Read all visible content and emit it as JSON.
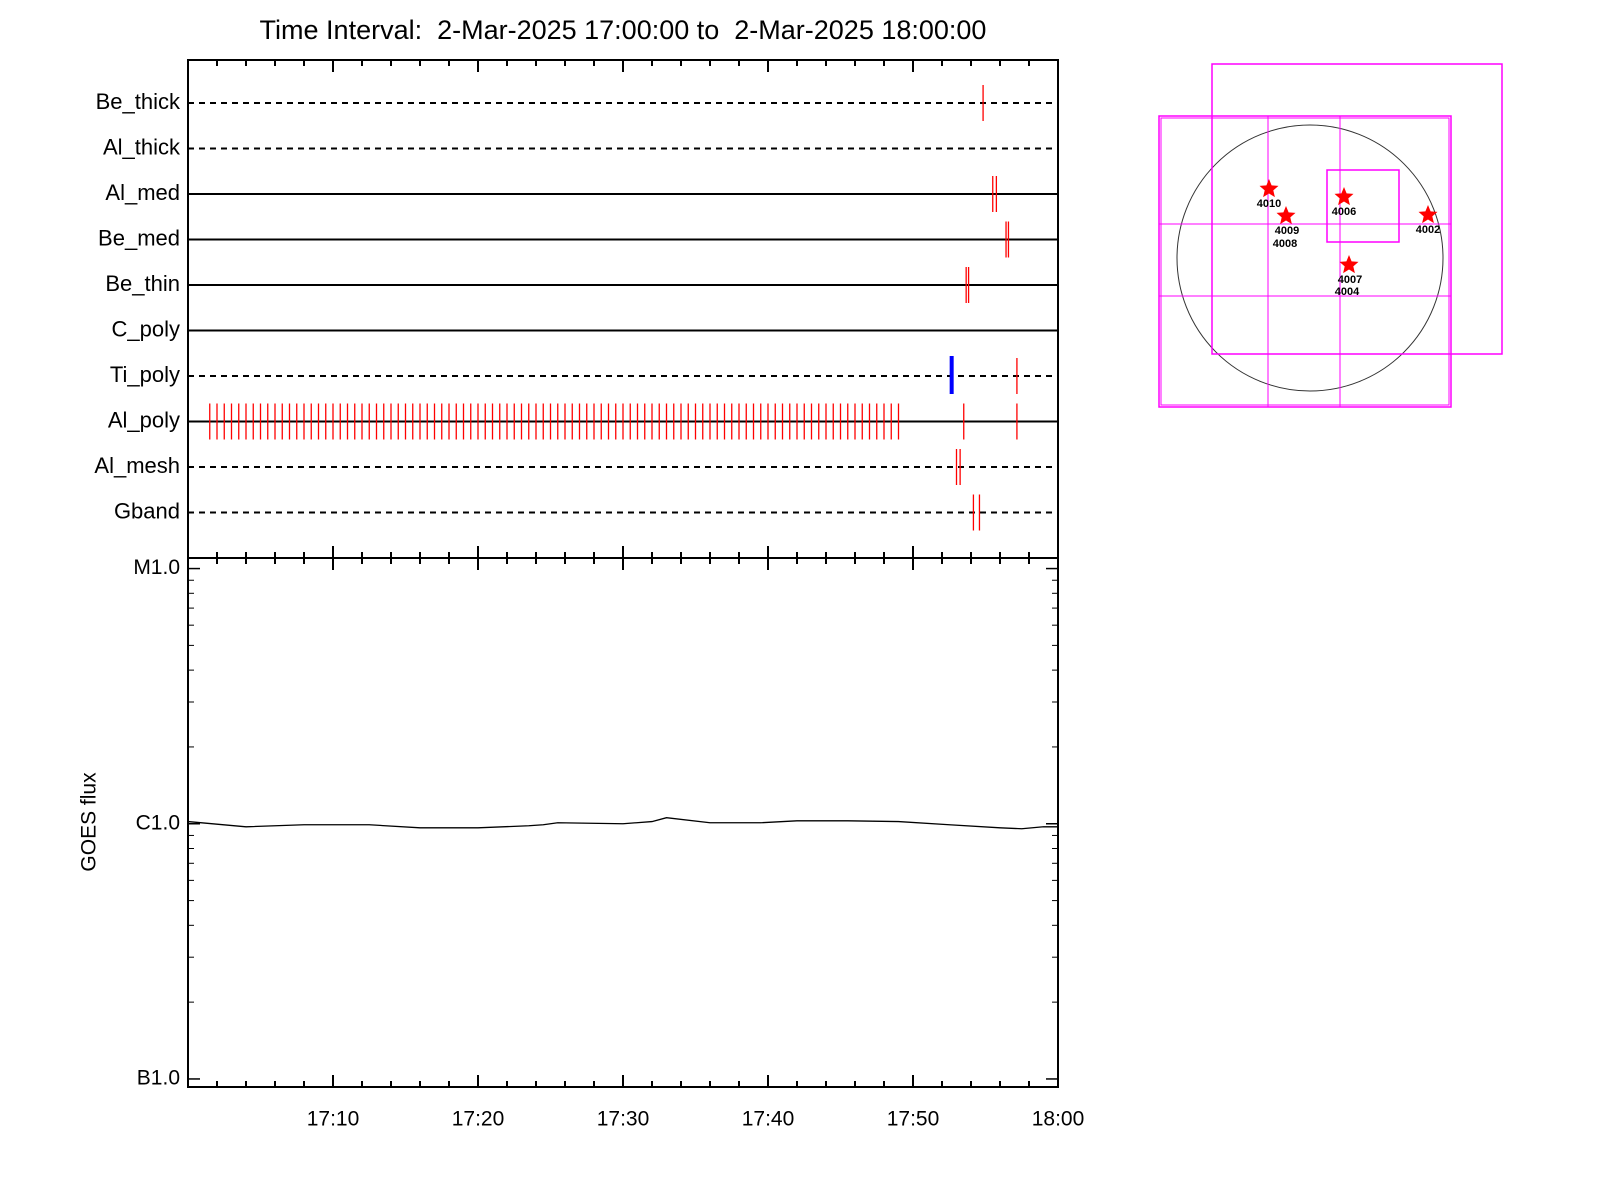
{
  "chart_data": [
    {
      "type": "timeline",
      "title": "Time Interval:  2-Mar-2025 17:00:00 to  2-Mar-2025 18:00:00",
      "xlim": [
        "17:00",
        "18:00"
      ],
      "xticks": [
        "17:10",
        "17:20",
        "17:30",
        "17:40",
        "17:50"
      ],
      "xminor": [
        "17:02",
        "17:04",
        "17:06",
        "17:08",
        "17:12",
        "17:14",
        "17:16",
        "17:18",
        "17:22",
        "17:24",
        "17:26",
        "17:28",
        "17:32",
        "17:34",
        "17:36",
        "17:38",
        "17:42",
        "17:44",
        "17:46",
        "17:48",
        "17:52",
        "17:54",
        "17:56",
        "17:58"
      ],
      "exposure_color": "#ff0000",
      "highlight_color": "#0000ff",
      "rows": [
        {
          "name": "Be_thick",
          "style": "dashed",
          "exposures": [
            "17:54:50"
          ]
        },
        {
          "name": "Al_thick",
          "style": "dashed",
          "exposures": []
        },
        {
          "name": "Al_med",
          "style": "solid",
          "exposures": [
            "17:55:30",
            "17:55:45"
          ]
        },
        {
          "name": "Be_med",
          "style": "solid",
          "exposures": [
            "17:56:25",
            "17:56:35"
          ]
        },
        {
          "name": "Be_thin",
          "style": "solid",
          "exposures": [
            "17:53:40",
            "17:53:50"
          ]
        },
        {
          "name": "C_poly",
          "style": "solid",
          "exposures": []
        },
        {
          "name": "Ti_poly",
          "style": "dashed",
          "exposures": [
            "17:57:10"
          ],
          "highlights": [
            "17:52:40"
          ]
        },
        {
          "name": "Al_poly",
          "style": "solid",
          "exposures": [
            "17:01:30",
            "17:02:00",
            "17:02:30",
            "17:03:00",
            "17:03:30",
            "17:04:00",
            "17:04:30",
            "17:05:00",
            "17:05:30",
            "17:06:00",
            "17:06:30",
            "17:07:00",
            "17:07:30",
            "17:08:00",
            "17:08:30",
            "17:09:00",
            "17:09:30",
            "17:10:00",
            "17:10:30",
            "17:11:00",
            "17:11:30",
            "17:12:00",
            "17:12:30",
            "17:13:00",
            "17:13:30",
            "17:14:00",
            "17:14:30",
            "17:15:00",
            "17:15:30",
            "17:16:00",
            "17:16:30",
            "17:17:00",
            "17:17:30",
            "17:18:00",
            "17:18:30",
            "17:19:00",
            "17:19:30",
            "17:20:00",
            "17:20:30",
            "17:21:00",
            "17:21:30",
            "17:22:00",
            "17:22:30",
            "17:23:00",
            "17:23:30",
            "17:24:00",
            "17:24:30",
            "17:25:00",
            "17:25:30",
            "17:26:00",
            "17:26:30",
            "17:27:00",
            "17:27:30",
            "17:28:00",
            "17:28:30",
            "17:29:00",
            "17:29:30",
            "17:30:00",
            "17:30:30",
            "17:31:00",
            "17:31:30",
            "17:32:00",
            "17:32:30",
            "17:33:00",
            "17:33:30",
            "17:34:00",
            "17:34:30",
            "17:35:00",
            "17:35:30",
            "17:36:00",
            "17:36:30",
            "17:37:00",
            "17:37:30",
            "17:38:00",
            "17:38:30",
            "17:39:00",
            "17:39:30",
            "17:40:00",
            "17:40:30",
            "17:41:00",
            "17:41:30",
            "17:42:00",
            "17:42:30",
            "17:43:00",
            "17:43:30",
            "17:44:00",
            "17:44:30",
            "17:45:00",
            "17:45:30",
            "17:46:00",
            "17:46:30",
            "17:47:00",
            "17:47:30",
            "17:48:00",
            "17:48:30",
            "17:49:00",
            "17:53:30",
            "17:57:10"
          ]
        },
        {
          "name": "Al_mesh",
          "style": "dashed",
          "exposures": [
            "17:53:00",
            "17:53:15"
          ]
        },
        {
          "name": "Gband",
          "style": "dashed",
          "exposures": [
            "17:54:10",
            "17:54:35"
          ]
        }
      ]
    },
    {
      "type": "line",
      "y_label": "GOES flux",
      "log": true,
      "color": "#000000",
      "xlim": [
        "17:00",
        "18:00"
      ],
      "xticks": [
        "17:10",
        "17:20",
        "17:30",
        "17:40",
        "17:50",
        "18:00"
      ],
      "xminor": [
        "17:02",
        "17:04",
        "17:06",
        "17:08",
        "17:12",
        "17:14",
        "17:16",
        "17:18",
        "17:22",
        "17:24",
        "17:26",
        "17:28",
        "17:32",
        "17:34",
        "17:36",
        "17:38",
        "17:42",
        "17:44",
        "17:46",
        "17:48",
        "17:52",
        "17:54",
        "17:56",
        "17:58"
      ],
      "ylim": [
        9.3e-08,
        1.1e-05
      ],
      "yticks": [
        {
          "value": 1e-07,
          "label": "B1.0"
        },
        {
          "value": 1e-06,
          "label": "C1.0"
        },
        {
          "value": 1e-05,
          "label": "M1.0"
        }
      ],
      "yminor": [
        2e-07,
        3e-07,
        4e-07,
        5e-07,
        6e-07,
        7e-07,
        8e-07,
        9e-07,
        2e-06,
        3e-06,
        4e-06,
        5e-06,
        6e-06,
        7e-06,
        8e-06,
        9e-06
      ],
      "x": [
        "17:00:00",
        "17:04:00",
        "17:08:00",
        "17:12:30",
        "17:16:00",
        "17:20:00",
        "17:23:30",
        "17:24:30",
        "17:25:30",
        "17:30:00",
        "17:32:00",
        "17:33:00",
        "17:36:00",
        "17:39:30",
        "17:42:00",
        "17:45:30",
        "17:49:00",
        "17:52:30",
        "17:56:00",
        "17:57:30",
        "17:59:00",
        "18:00:00"
      ],
      "values": [
        1.02e-06,
        9.73e-07,
        9.91e-07,
        9.91e-07,
        9.64e-07,
        9.64e-07,
        9.82e-07,
        9.91e-07,
        1.009e-06,
        1e-06,
        1.02e-06,
        1.056e-06,
        1.009e-06,
        1.009e-06,
        1.027e-06,
        1.027e-06,
        1.02e-06,
        9.91e-07,
        9.64e-07,
        9.56e-07,
        9.73e-07,
        9.73e-07
      ]
    }
  ],
  "sun_map": {
    "regions": [
      "4010",
      "4009",
      "4008",
      "4006",
      "4002",
      "4007",
      "4004"
    ]
  }
}
